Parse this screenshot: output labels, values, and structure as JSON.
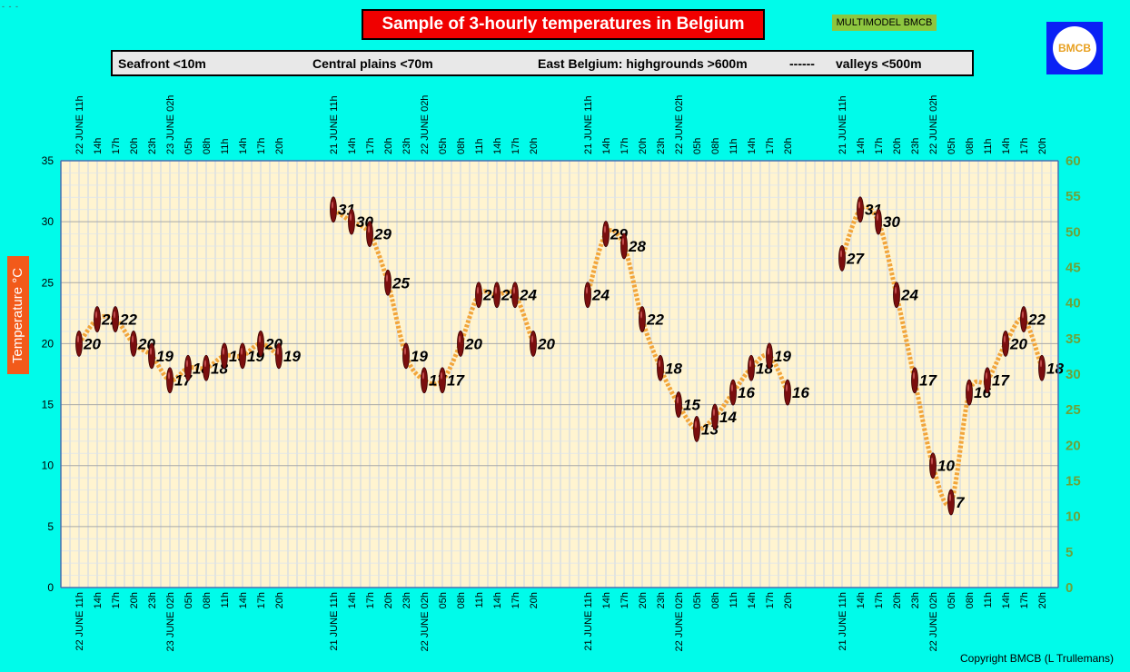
{
  "corner_mark": "- - -",
  "header": {
    "title": "Sample of 3-hourly temperatures in Belgium",
    "model_badge": "MULTIMODEL BMCB",
    "logo_text": "BMCB"
  },
  "regions": {
    "seafront": "Seafront <10m",
    "central": "Central plains <70m",
    "east": "East Belgium: highgrounds >600m",
    "separator": "------",
    "valleys": "valleys <500m"
  },
  "footer": {
    "copyright": "Copyright BMCB (L Trullemans)"
  },
  "colors": {
    "background": "#00FBEA",
    "plot_bg": "#FFF4D0",
    "line": "#F2A53A",
    "marker": "#7A0E0E",
    "right_axis": "#6BA33A"
  },
  "chart_data": {
    "type": "line",
    "title": "Sample of 3-hourly temperatures in Belgium",
    "ylabel": "Temperature   °C",
    "ylim": [
      0,
      35
    ],
    "yticks": [
      0,
      5,
      10,
      15,
      20,
      25,
      30,
      35
    ],
    "y2lim": [
      0,
      60
    ],
    "y2ticks": [
      0,
      5,
      10,
      15,
      20,
      25,
      30,
      35,
      40,
      45,
      50,
      55,
      60
    ],
    "grid": true,
    "series": [
      {
        "name": "Seafront <10m",
        "x": [
          "22 JUNE 11h",
          "14h",
          "17h",
          "20h",
          "23h",
          "23 JUNE 02h",
          "05h",
          "08h",
          "11h",
          "14h",
          "17h",
          "20h"
        ],
        "values": [
          20,
          22,
          22,
          20,
          19,
          17,
          18,
          18,
          19,
          19,
          20,
          19
        ]
      },
      {
        "name": "Central plains <70m",
        "x": [
          "21 JUNE 11h",
          "14h",
          "17h",
          "20h",
          "23h",
          "22 JUNE 02h",
          "05h",
          "08h",
          "11h",
          "14h",
          "17h",
          "20h"
        ],
        "values": [
          31,
          30,
          29,
          25,
          19,
          17,
          17,
          20,
          24,
          24,
          24,
          20
        ]
      },
      {
        "name": "East Belgium: highgrounds >600m",
        "x": [
          "21 JUNE 11h",
          "14h",
          "17h",
          "20h",
          "23h",
          "22 JUNE 02h",
          "05h",
          "08h",
          "11h",
          "14h",
          "17h",
          "20h"
        ],
        "values": [
          24,
          29,
          28,
          22,
          18,
          15,
          13,
          14,
          16,
          18,
          19,
          16
        ]
      },
      {
        "name": "valleys <500m",
        "x": [
          "21 JUNE 11h",
          "14h",
          "17h",
          "20h",
          "23h",
          "22 JUNE 02h",
          "05h",
          "08h",
          "11h",
          "14h",
          "17h",
          "20h"
        ],
        "values": [
          27,
          31,
          30,
          24,
          17,
          10,
          7,
          16,
          17,
          20,
          22,
          18
        ]
      }
    ]
  }
}
